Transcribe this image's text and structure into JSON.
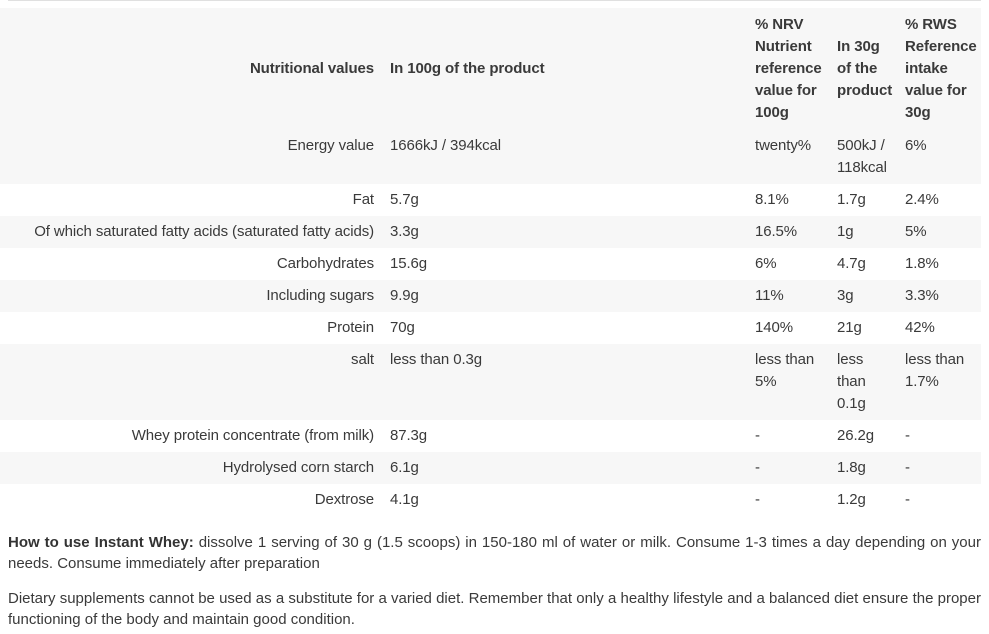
{
  "table": {
    "headers": {
      "col1": "Nutritional values",
      "col2": "In 100g of the product",
      "col3": "% NRV Nutrient reference value for 100g",
      "col4": "In 30g of the product",
      "col5": "% RWS Reference intake value for 30g"
    },
    "rows": [
      {
        "label": "Energy value",
        "per_100g": "1666kJ / 394kcal",
        "nrv_100g": "twenty%",
        "per_30g": "500kJ / 118kcal",
        "rws_30g": "6%"
      },
      {
        "label": "Fat",
        "per_100g": "5.7g",
        "nrv_100g": "8.1%",
        "per_30g": "1.7g",
        "rws_30g": "2.4%"
      },
      {
        "label": "Of which saturated fatty acids (saturated fatty acids)",
        "per_100g": "3.3g",
        "nrv_100g": "16.5%",
        "per_30g": "1g",
        "rws_30g": "5%"
      },
      {
        "label": "Carbohydrates",
        "per_100g": "15.6g",
        "nrv_100g": "6%",
        "per_30g": "4.7g",
        "rws_30g": "1.8%"
      },
      {
        "label": "Including sugars",
        "per_100g": "9.9g",
        "nrv_100g": "11%",
        "per_30g": "3g",
        "rws_30g": "3.3%"
      },
      {
        "label": "Protein",
        "per_100g": "70g",
        "nrv_100g": "140%",
        "per_30g": "21g",
        "rws_30g": "42%"
      },
      {
        "label": "salt",
        "per_100g": "less than 0.3g",
        "nrv_100g": "less than 5%",
        "per_30g": "less than 0.1g",
        "rws_30g": "less than 1.7%"
      },
      {
        "label": "Whey protein concentrate (from milk)",
        "per_100g": "87.3g",
        "nrv_100g": "-",
        "per_30g": "26.2g",
        "rws_30g": "-"
      },
      {
        "label": "Hydrolysed corn starch",
        "per_100g": "6.1g",
        "nrv_100g": "-",
        "per_30g": "1.8g",
        "rws_30g": "-"
      },
      {
        "label": "Dextrose",
        "per_100g": "4.1g",
        "nrv_100g": "-",
        "per_30g": "1.2g",
        "rws_30g": "-"
      }
    ]
  },
  "footer": {
    "usage_bold": "How to use Instant Whey:",
    "usage_text": " dissolve 1 serving of 30 g (1.5 scoops) in 150-180 ml of water or milk. Consume 1-3 times a day depending on your needs. Consume immediately after preparation",
    "disclaimer": "Dietary supplements cannot be used as a substitute for a varied diet. Remember that only a healthy lifestyle and a balanced diet ensure the proper functioning of the body and maintain good condition."
  },
  "colors": {
    "stripe": "#f7f7f7",
    "text": "#3a3a3a",
    "divider": "#e0e0e0"
  }
}
